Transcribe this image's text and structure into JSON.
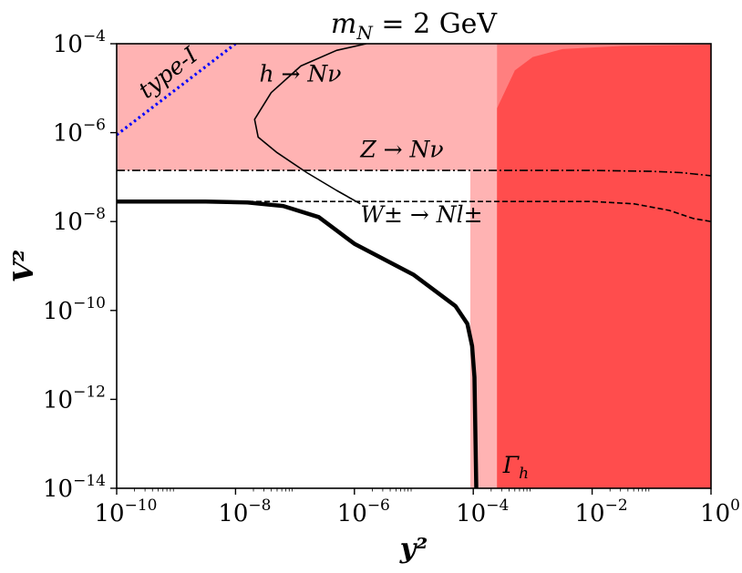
{
  "chart_data": {
    "type": "line",
    "title": "m_N = 2 GeV",
    "xlabel": "y²",
    "ylabel": "V²",
    "xscale": "log",
    "yscale": "log",
    "xlim_exp": [
      -10,
      0
    ],
    "ylim_exp": [
      -14,
      -4
    ],
    "x_ticks": [
      {
        "base": "10",
        "exp": "−10",
        "v": -10
      },
      {
        "base": "10",
        "exp": "−8",
        "v": -8
      },
      {
        "base": "10",
        "exp": "−6",
        "v": -6
      },
      {
        "base": "10",
        "exp": "−4",
        "v": -4
      },
      {
        "base": "10",
        "exp": "−2",
        "v": -2
      },
      {
        "base": "10",
        "exp": "0",
        "v": 0
      }
    ],
    "y_ticks": [
      {
        "base": "10",
        "exp": "−4",
        "v": -4
      },
      {
        "base": "10",
        "exp": "−6",
        "v": -6
      },
      {
        "base": "10",
        "exp": "−8",
        "v": -8
      },
      {
        "base": "10",
        "exp": "−10",
        "v": -10
      },
      {
        "base": "10",
        "exp": "−12",
        "v": -12
      },
      {
        "base": "10",
        "exp": "−14",
        "v": -14
      }
    ],
    "colors": {
      "light_region": "#ffb3b3",
      "medium_region": "#ff7f7f",
      "dark_region": "#ff4d4d",
      "gamma_label": "#ff1a1a",
      "type1_line": "#0000ff"
    },
    "series": [
      {
        "name": "type-I",
        "style": "dotted",
        "points": [
          [
            -10,
            -6.05
          ],
          [
            -8,
            -4
          ]
        ]
      },
      {
        "name": "h → Nν",
        "style": "thin-solid",
        "points": [
          [
            -5.8,
            -4
          ],
          [
            -6.3,
            -4.15
          ],
          [
            -6.9,
            -4.5
          ],
          [
            -7.4,
            -5.1
          ],
          [
            -7.68,
            -5.7
          ],
          [
            -7.62,
            -6.1
          ],
          [
            -7.3,
            -6.45
          ],
          [
            -6.8,
            -6.9
          ],
          [
            -6.3,
            -7.3
          ],
          [
            -5.9,
            -7.6
          ]
        ]
      },
      {
        "name": "Z → Nν",
        "style": "dashdot",
        "points": [
          [
            -10,
            -6.85
          ],
          [
            -2,
            -6.85
          ],
          [
            -1,
            -6.87
          ],
          [
            -0.5,
            -6.9
          ],
          [
            0,
            -6.97
          ]
        ]
      },
      {
        "name": "W± → Nl±",
        "style": "dashed",
        "points": [
          [
            -10,
            -7.55
          ],
          [
            -2,
            -7.55
          ],
          [
            -1.3,
            -7.6
          ],
          [
            -0.7,
            -7.75
          ],
          [
            -0.3,
            -7.93
          ],
          [
            0,
            -8.0
          ]
        ]
      },
      {
        "name": "",
        "style": "thick-solid",
        "points": [
          [
            -10,
            -7.55
          ],
          [
            -8.5,
            -7.55
          ],
          [
            -7.8,
            -7.57
          ],
          [
            -7.2,
            -7.65
          ],
          [
            -6.6,
            -7.9
          ],
          [
            -6.0,
            -8.5
          ],
          [
            -5.0,
            -9.2
          ],
          [
            -4.3,
            -9.9
          ],
          [
            -4.1,
            -10.3
          ],
          [
            -4.02,
            -10.8
          ],
          [
            -3.98,
            -11.5
          ],
          [
            -3.95,
            -14
          ]
        ]
      }
    ],
    "regions": [
      {
        "kind": "band",
        "role": "light",
        "x_exp": [
          -10,
          0
        ],
        "y_exp": [
          -6.85,
          -4
        ]
      },
      {
        "kind": "band",
        "role": "light",
        "x_exp": [
          -4.05,
          0
        ],
        "y_exp": [
          -14,
          -4
        ]
      },
      {
        "kind": "band",
        "role": "medium",
        "x_exp": [
          -3.6,
          0
        ],
        "y_exp": [
          -14,
          -4
        ]
      },
      {
        "kind": "curve",
        "role": "dark",
        "points": [
          [
            -3.6,
            -5.45
          ],
          [
            -3.3,
            -4.6
          ],
          [
            -3.0,
            -4.3
          ],
          [
            -2.5,
            -4.12
          ],
          [
            -1.5,
            -4.05
          ],
          [
            0,
            -4.02
          ]
        ]
      }
    ],
    "annotations": [
      {
        "text": "type-I",
        "x": -9.5,
        "y": -5.25
      },
      {
        "text": "h → Nν",
        "x": -7.6,
        "y": -4.85
      },
      {
        "text": "Z → Nν",
        "x": -5.9,
        "y": -6.55
      },
      {
        "text": "W± → Nl±",
        "x": -5.9,
        "y": -8.02
      },
      {
        "text": "Γh",
        "x": -3.5,
        "y": -13.65
      }
    ]
  }
}
